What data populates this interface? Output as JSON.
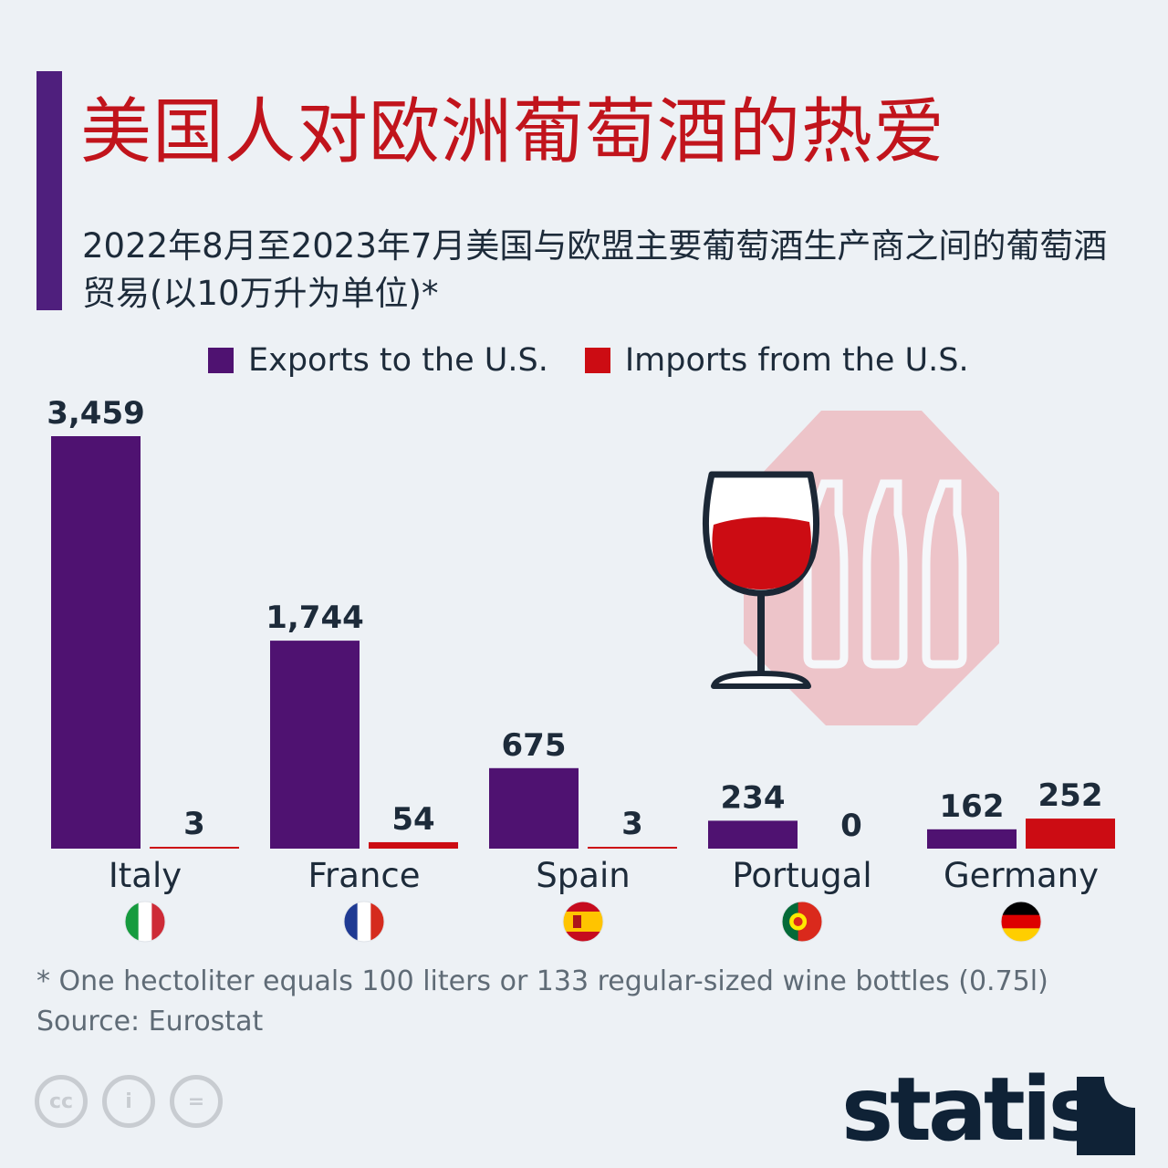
{
  "title": "美国人对欧洲葡萄酒的热爱",
  "subtitle": "2022年8月至2023年7月美国与欧盟主要葡萄酒生产商之间的葡萄酒贸易(以10万升为单位)*",
  "footnote": "* One hectoliter equals 100 liters or 133 regular-sized wine bottles (0.75l)",
  "source": "Source: Eurostat",
  "license": {
    "cc": "cc",
    "by": "i",
    "nd": "="
  },
  "logo": "statista",
  "colors": {
    "exports": "#4f1271",
    "imports": "#cc0c13",
    "accent": "#4f1f7d",
    "title": "#c1141c"
  },
  "chart_data": {
    "type": "bar",
    "categories": [
      "Italy",
      "France",
      "Spain",
      "Portugal",
      "Germany"
    ],
    "series": [
      {
        "name": "Exports to the U.S.",
        "values": [
          3459,
          1744,
          675,
          234,
          162
        ],
        "labels": [
          "3,459",
          "1,744",
          "675",
          "234",
          "162"
        ]
      },
      {
        "name": "Imports from the U.S.",
        "values": [
          3,
          54,
          3,
          0,
          252
        ],
        "labels": [
          "3",
          "54",
          "3",
          "0",
          "252"
        ]
      }
    ],
    "flags": [
      "italy-flag-icon",
      "france-flag-icon",
      "spain-flag-icon",
      "portugal-flag-icon",
      "germany-flag-icon"
    ],
    "legend": "top"
  }
}
